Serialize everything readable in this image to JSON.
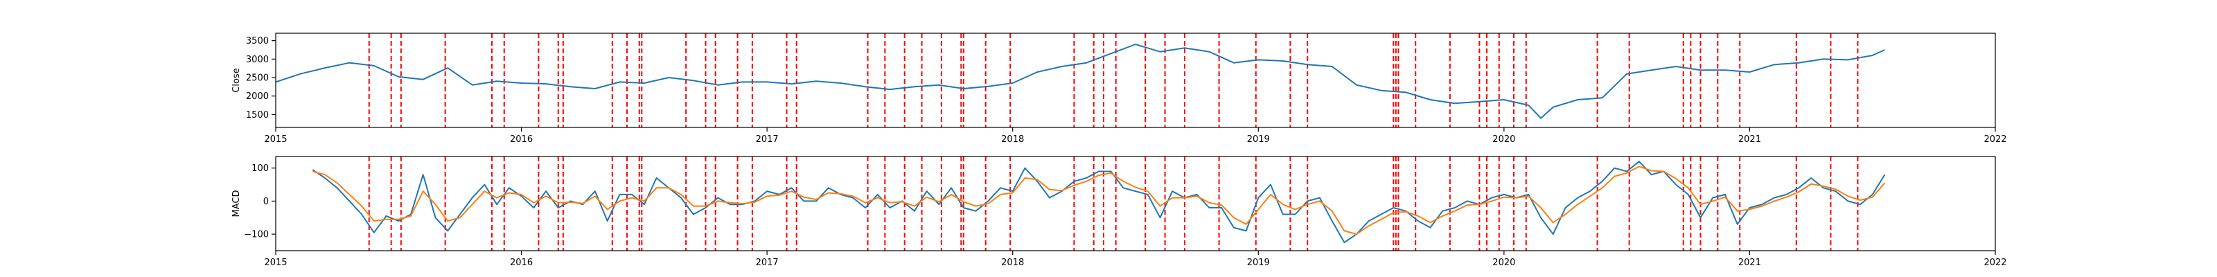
{
  "chart_data": [
    {
      "type": "line",
      "ylabel": "Close",
      "xlabel": "",
      "xlim": [
        2015.0,
        2022.0
      ],
      "ylim": [
        1150,
        3700
      ],
      "x_ticks": [
        2015,
        2016,
        2017,
        2018,
        2019,
        2020,
        2021,
        2022
      ],
      "x_tick_labels": [
        "2015",
        "2016",
        "2017",
        "2018",
        "2019",
        "2020",
        "2021",
        "2022"
      ],
      "y_ticks": [
        1500,
        2000,
        2500,
        3000,
        3500
      ],
      "y_tick_labels": [
        "1500",
        "2000",
        "2500",
        "3000",
        "3500"
      ],
      "grid": false,
      "colors": {
        "series": "#1f77b4",
        "events": "#ff0000"
      },
      "series": [
        {
          "x": [
            2015.0,
            2015.1,
            2015.2,
            2015.3,
            2015.4,
            2015.5,
            2015.6,
            2015.7,
            2015.8,
            2015.9,
            2016.0,
            2016.1,
            2016.2,
            2016.3,
            2016.4,
            2016.5,
            2016.6,
            2016.7,
            2016.8,
            2016.9,
            2017.0,
            2017.1,
            2017.2,
            2017.3,
            2017.4,
            2017.5,
            2017.6,
            2017.7,
            2017.8,
            2017.9,
            2018.0,
            2018.1,
            2018.2,
            2018.3,
            2018.4,
            2018.5,
            2018.6,
            2018.7,
            2018.8,
            2018.9,
            2019.0,
            2019.1,
            2019.2,
            2019.3,
            2019.4,
            2019.5,
            2019.6,
            2019.7,
            2019.8,
            2019.9,
            2020.0,
            2020.1,
            2020.15,
            2020.2,
            2020.3,
            2020.4,
            2020.5,
            2020.6,
            2020.7,
            2020.8,
            2020.9,
            2021.0,
            2021.1,
            2021.2,
            2021.3,
            2021.4,
            2021.5,
            2021.55
          ],
          "values": [
            2380,
            2600,
            2760,
            2900,
            2820,
            2520,
            2450,
            2760,
            2300,
            2400,
            2350,
            2330,
            2250,
            2200,
            2380,
            2350,
            2500,
            2420,
            2300,
            2380,
            2380,
            2330,
            2400,
            2350,
            2250,
            2180,
            2250,
            2300,
            2200,
            2260,
            2350,
            2650,
            2800,
            2900,
            3150,
            3400,
            3200,
            3300,
            3200,
            2900,
            2980,
            2950,
            2850,
            2800,
            2300,
            2150,
            2100,
            1900,
            1800,
            1850,
            1900,
            1750,
            1400,
            1700,
            1900,
            1950,
            2600,
            2700,
            2800,
            2700,
            2700,
            2650,
            2850,
            2900,
            3000,
            2980,
            3100,
            3250
          ]
        }
      ],
      "event_lines": [
        2015.38,
        2015.47,
        2015.51,
        2015.69,
        2015.88,
        2015.93,
        2016.07,
        2016.15,
        2016.17,
        2016.37,
        2016.43,
        2016.48,
        2016.49,
        2016.67,
        2016.75,
        2016.79,
        2016.88,
        2016.94,
        2017.08,
        2017.12,
        2017.41,
        2017.48,
        2017.56,
        2017.63,
        2017.71,
        2017.79,
        2017.8,
        2017.89,
        2017.99,
        2018.25,
        2018.33,
        2018.37,
        2018.42,
        2018.54,
        2018.62,
        2018.7,
        2018.84,
        2018.99,
        2019.13,
        2019.2,
        2019.55,
        2019.56,
        2019.57,
        2019.64,
        2019.78,
        2019.9,
        2019.93,
        2019.98,
        2020.04,
        2020.09,
        2020.38,
        2020.51,
        2020.73,
        2020.76,
        2020.8,
        2020.87,
        2020.96,
        2021.19,
        2021.33,
        2021.44
      ]
    },
    {
      "type": "line",
      "ylabel": "MACD",
      "xlabel": "",
      "xlim": [
        2015.0,
        2022.0
      ],
      "ylim": [
        -150,
        135
      ],
      "x_ticks": [
        2015,
        2016,
        2017,
        2018,
        2019,
        2020,
        2021,
        2022
      ],
      "x_tick_labels": [
        "2015",
        "2016",
        "2017",
        "2018",
        "2019",
        "2020",
        "2021",
        "2022"
      ],
      "y_ticks": [
        -100,
        0,
        100
      ],
      "y_tick_labels": [
        "−100",
        "0",
        "100"
      ],
      "grid": false,
      "colors": {
        "macd": "#1f77b4",
        "signal": "#ff7f0e",
        "events": "#ff0000"
      },
      "series": [
        {
          "x": [
            2015.15,
            2015.2,
            2015.25,
            2015.3,
            2015.35,
            2015.4,
            2015.45,
            2015.5,
            2015.55,
            2015.6,
            2015.65,
            2015.7,
            2015.75,
            2015.8,
            2015.85,
            2015.9,
            2015.95,
            2016.0,
            2016.05,
            2016.1,
            2016.15,
            2016.2,
            2016.25,
            2016.3,
            2016.35,
            2016.4,
            2016.45,
            2016.5,
            2016.55,
            2016.6,
            2016.65,
            2016.7,
            2016.75,
            2016.8,
            2016.85,
            2016.9,
            2016.95,
            2017.0,
            2017.05,
            2017.1,
            2017.15,
            2017.2,
            2017.25,
            2017.3,
            2017.35,
            2017.4,
            2017.45,
            2017.5,
            2017.55,
            2017.6,
            2017.65,
            2017.7,
            2017.75,
            2017.8,
            2017.85,
            2017.9,
            2017.95,
            2018.0,
            2018.05,
            2018.1,
            2018.15,
            2018.2,
            2018.25,
            2018.3,
            2018.35,
            2018.4,
            2018.45,
            2018.5,
            2018.55,
            2018.6,
            2018.65,
            2018.7,
            2018.75,
            2018.8,
            2018.85,
            2018.9,
            2018.95,
            2019.0,
            2019.05,
            2019.1,
            2019.15,
            2019.2,
            2019.25,
            2019.3,
            2019.35,
            2019.4,
            2019.45,
            2019.5,
            2019.55,
            2019.6,
            2019.65,
            2019.7,
            2019.75,
            2019.8,
            2019.85,
            2019.9,
            2019.95,
            2020.0,
            2020.05,
            2020.1,
            2020.15,
            2020.2,
            2020.25,
            2020.3,
            2020.35,
            2020.4,
            2020.45,
            2020.5,
            2020.55,
            2020.6,
            2020.65,
            2020.7,
            2020.75,
            2020.8,
            2020.85,
            2020.9,
            2020.95,
            2021.0,
            2021.05,
            2021.1,
            2021.15,
            2021.2,
            2021.25,
            2021.3,
            2021.35,
            2021.4,
            2021.45,
            2021.5,
            2021.55
          ],
          "name": "",
          "values": [
            95,
            70,
            40,
            0,
            -40,
            -95,
            -45,
            -60,
            -40,
            80,
            -50,
            -90,
            -40,
            10,
            50,
            -10,
            40,
            15,
            -20,
            30,
            -20,
            0,
            -10,
            30,
            -60,
            20,
            20,
            -10,
            70,
            40,
            10,
            -40,
            -20,
            10,
            -10,
            -10,
            0,
            30,
            20,
            40,
            0,
            0,
            40,
            20,
            10,
            -20,
            20,
            -20,
            0,
            -30,
            30,
            -10,
            40,
            -20,
            -30,
            0,
            40,
            30,
            100,
            60,
            10,
            30,
            60,
            70,
            90,
            90,
            40,
            30,
            20,
            -50,
            30,
            10,
            20,
            -20,
            -20,
            -80,
            -90,
            10,
            50,
            -40,
            -40,
            0,
            10,
            -60,
            -125,
            -100,
            -60,
            -40,
            -20,
            -30,
            -60,
            -80,
            -30,
            -20,
            0,
            -10,
            10,
            20,
            10,
            20,
            -50,
            -100,
            -20,
            10,
            30,
            60,
            100,
            90,
            120,
            80,
            90,
            50,
            20,
            -50,
            10,
            20,
            -70,
            -20,
            -10,
            10,
            20,
            40,
            70,
            40,
            30,
            0,
            -10,
            20,
            80
          ]
        },
        {
          "x": [
            2015.15,
            2015.2,
            2015.25,
            2015.3,
            2015.35,
            2015.4,
            2015.45,
            2015.5,
            2015.55,
            2015.6,
            2015.65,
            2015.7,
            2015.75,
            2015.8,
            2015.85,
            2015.9,
            2015.95,
            2016.0,
            2016.05,
            2016.1,
            2016.15,
            2016.2,
            2016.25,
            2016.3,
            2016.35,
            2016.4,
            2016.45,
            2016.5,
            2016.55,
            2016.6,
            2016.65,
            2016.7,
            2016.75,
            2016.8,
            2016.85,
            2016.9,
            2016.95,
            2017.0,
            2017.05,
            2017.1,
            2017.15,
            2017.2,
            2017.25,
            2017.3,
            2017.35,
            2017.4,
            2017.45,
            2017.5,
            2017.55,
            2017.6,
            2017.65,
            2017.7,
            2017.75,
            2017.8,
            2017.85,
            2017.9,
            2017.95,
            2018.0,
            2018.05,
            2018.1,
            2018.15,
            2018.2,
            2018.25,
            2018.3,
            2018.35,
            2018.4,
            2018.45,
            2018.5,
            2018.55,
            2018.6,
            2018.65,
            2018.7,
            2018.75,
            2018.8,
            2018.85,
            2018.9,
            2018.95,
            2019.0,
            2019.05,
            2019.1,
            2019.15,
            2019.2,
            2019.25,
            2019.3,
            2019.35,
            2019.4,
            2019.45,
            2019.5,
            2019.55,
            2019.6,
            2019.65,
            2019.7,
            2019.75,
            2019.8,
            2019.85,
            2019.9,
            2019.95,
            2020.0,
            2020.05,
            2020.1,
            2020.15,
            2020.2,
            2020.25,
            2020.3,
            2020.35,
            2020.4,
            2020.45,
            2020.5,
            2020.55,
            2020.6,
            2020.65,
            2020.7,
            2020.75,
            2020.8,
            2020.85,
            2020.9,
            2020.95,
            2021.0,
            2021.05,
            2021.1,
            2021.15,
            2021.2,
            2021.25,
            2021.3,
            2021.35,
            2021.4,
            2021.45,
            2021.5,
            2021.55
          ],
          "name": "",
          "values": [
            90,
            80,
            55,
            20,
            -15,
            -60,
            -55,
            -55,
            -45,
            30,
            -10,
            -60,
            -50,
            -10,
            30,
            10,
            25,
            20,
            -5,
            15,
            -5,
            -3,
            -7,
            15,
            -25,
            0,
            10,
            0,
            40,
            40,
            20,
            -15,
            -15,
            0,
            -5,
            -8,
            -3,
            15,
            18,
            30,
            12,
            5,
            25,
            22,
            15,
            -5,
            10,
            -5,
            -2,
            -15,
            12,
            -2,
            20,
            -2,
            -15,
            -8,
            20,
            25,
            70,
            65,
            35,
            32,
            48,
            60,
            78,
            85,
            60,
            42,
            30,
            -15,
            10,
            10,
            15,
            -5,
            -12,
            -50,
            -70,
            -25,
            20,
            -10,
            -25,
            -10,
            0,
            -30,
            -90,
            -100,
            -75,
            -55,
            -35,
            -32,
            -45,
            -65,
            -45,
            -30,
            -12,
            -10,
            0,
            12,
            10,
            15,
            -20,
            -65,
            -40,
            -10,
            15,
            40,
            75,
            85,
            105,
            92,
            90,
            68,
            40,
            -10,
            0,
            12,
            -30,
            -25,
            -15,
            0,
            12,
            28,
            52,
            45,
            36,
            15,
            3,
            12,
            55
          ]
        }
      ],
      "event_lines": [
        2015.38,
        2015.47,
        2015.51,
        2015.69,
        2015.88,
        2015.93,
        2016.07,
        2016.15,
        2016.17,
        2016.37,
        2016.43,
        2016.48,
        2016.49,
        2016.67,
        2016.75,
        2016.79,
        2016.88,
        2016.94,
        2017.08,
        2017.12,
        2017.41,
        2017.48,
        2017.56,
        2017.63,
        2017.71,
        2017.79,
        2017.8,
        2017.89,
        2017.99,
        2018.25,
        2018.33,
        2018.37,
        2018.42,
        2018.54,
        2018.62,
        2018.7,
        2018.84,
        2018.99,
        2019.13,
        2019.2,
        2019.55,
        2019.56,
        2019.57,
        2019.64,
        2019.78,
        2019.9,
        2019.93,
        2019.98,
        2020.04,
        2020.09,
        2020.38,
        2020.51,
        2020.73,
        2020.76,
        2020.8,
        2020.87,
        2020.96,
        2021.19,
        2021.33,
        2021.44
      ]
    }
  ]
}
